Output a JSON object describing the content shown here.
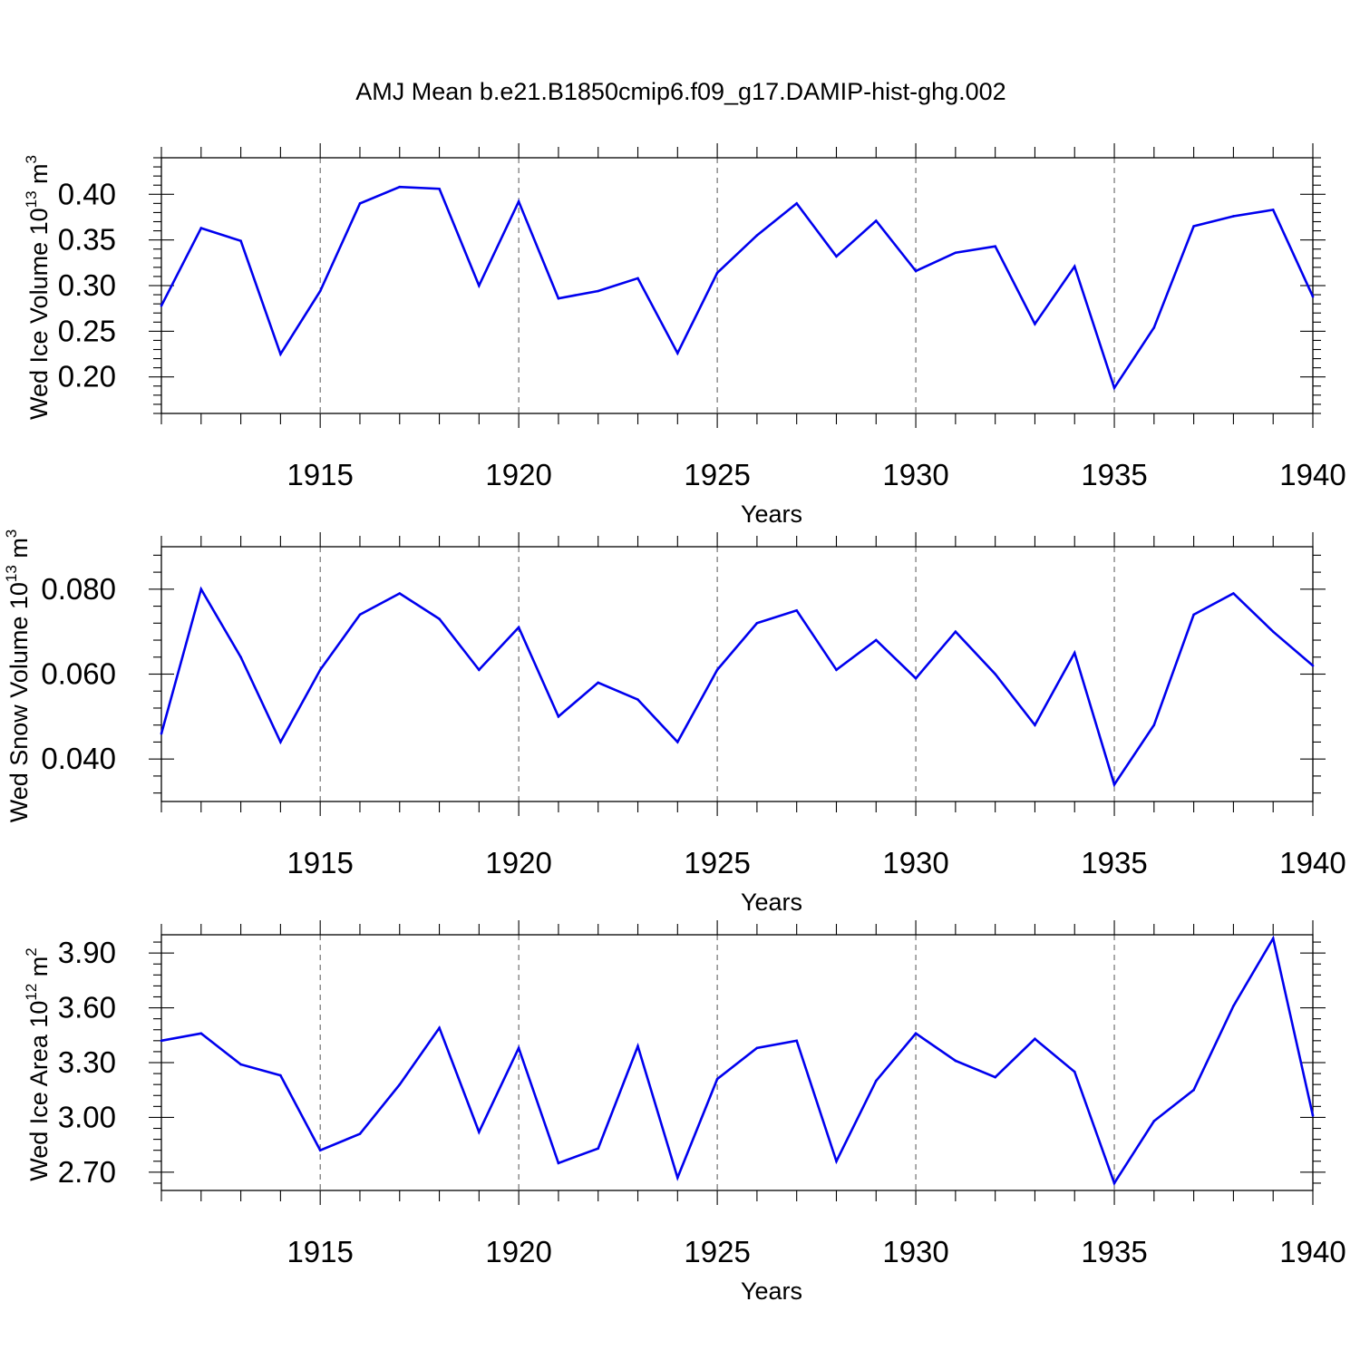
{
  "colors": {
    "series": "#0000ee",
    "frame": "#000000",
    "grid": "#555555",
    "background": "#ffffff"
  },
  "figure_title": "AMJ Mean b.e21.B1850cmip6.f09_g17.DAMIP-hist-ghg.002",
  "chart_data": [
    {
      "type": "line",
      "title": "AMJ Mean b.e21.B1850cmip6.f09_g17.DAMIP-hist-ghg.002",
      "xlabel": "Years",
      "ylabel": {
        "text": "Wed Ice Volume 10",
        "exponent": "13",
        "unit": " m",
        "unit_exponent": "3"
      },
      "xlim": [
        1911,
        1940
      ],
      "ylim": [
        0.16,
        0.44
      ],
      "x_ticks": [
        1915,
        1920,
        1925,
        1930,
        1935,
        1940
      ],
      "x_tick_labels": [
        "1915",
        "1920",
        "1925",
        "1930",
        "1935",
        "1940"
      ],
      "y_ticks": [
        0.2,
        0.25,
        0.3,
        0.35,
        0.4
      ],
      "y_tick_labels": [
        "0.20",
        "0.25",
        "0.30",
        "0.35",
        "0.40"
      ],
      "grid": "vertical dashed at major x ticks",
      "series": [
        {
          "name": "Wed Ice Volume",
          "x": [
            1911,
            1912,
            1913,
            1914,
            1915,
            1916,
            1917,
            1918,
            1919,
            1920,
            1921,
            1922,
            1923,
            1924,
            1925,
            1926,
            1927,
            1928,
            1929,
            1930,
            1931,
            1932,
            1933,
            1934,
            1935,
            1936,
            1937,
            1938,
            1939,
            1940
          ],
          "values": [
            0.278,
            0.363,
            0.349,
            0.225,
            0.294,
            0.39,
            0.408,
            0.406,
            0.3,
            0.392,
            0.286,
            0.294,
            0.308,
            0.226,
            0.314,
            0.355,
            0.39,
            0.332,
            0.371,
            0.316,
            0.336,
            0.343,
            0.258,
            0.321,
            0.188,
            0.254,
            0.365,
            0.376,
            0.383,
            0.288
          ]
        }
      ]
    },
    {
      "type": "line",
      "title": "",
      "xlabel": "Years",
      "ylabel": {
        "text": "Wed Snow Volume 10",
        "exponent": "13",
        "unit": " m",
        "unit_exponent": "3"
      },
      "xlim": [
        1911,
        1940
      ],
      "ylim": [
        0.03,
        0.09
      ],
      "x_ticks": [
        1915,
        1920,
        1925,
        1930,
        1935,
        1940
      ],
      "x_tick_labels": [
        "1915",
        "1920",
        "1925",
        "1930",
        "1935",
        "1940"
      ],
      "y_ticks": [
        0.04,
        0.06,
        0.08
      ],
      "y_tick_labels": [
        "0.040",
        "0.060",
        "0.080"
      ],
      "grid": "vertical dashed at major x ticks",
      "series": [
        {
          "name": "Wed Snow Volume",
          "x": [
            1911,
            1912,
            1913,
            1914,
            1915,
            1916,
            1917,
            1918,
            1919,
            1920,
            1921,
            1922,
            1923,
            1924,
            1925,
            1926,
            1927,
            1928,
            1929,
            1930,
            1931,
            1932,
            1933,
            1934,
            1935,
            1936,
            1937,
            1938,
            1939,
            1940
          ],
          "values": [
            0.046,
            0.08,
            0.064,
            0.044,
            0.061,
            0.074,
            0.079,
            0.073,
            0.061,
            0.071,
            0.05,
            0.058,
            0.054,
            0.044,
            0.061,
            0.072,
            0.075,
            0.061,
            0.068,
            0.059,
            0.07,
            0.06,
            0.048,
            0.065,
            0.034,
            0.048,
            0.074,
            0.079,
            0.07,
            0.062
          ]
        }
      ]
    },
    {
      "type": "line",
      "title": "",
      "xlabel": "Years",
      "ylabel": {
        "text": "Wed Ice Area 10",
        "exponent": "12",
        "unit": " m",
        "unit_exponent": "2"
      },
      "xlim": [
        1911,
        1940
      ],
      "ylim": [
        2.6,
        4.0
      ],
      "x_ticks": [
        1915,
        1920,
        1925,
        1930,
        1935,
        1940
      ],
      "x_tick_labels": [
        "1915",
        "1920",
        "1925",
        "1930",
        "1935",
        "1940"
      ],
      "y_ticks": [
        2.7,
        3.0,
        3.3,
        3.6,
        3.9
      ],
      "y_tick_labels": [
        "2.70",
        "3.00",
        "3.30",
        "3.60",
        "3.90"
      ],
      "grid": "vertical dashed at major x ticks",
      "series": [
        {
          "name": "Wed Ice Area",
          "x": [
            1911,
            1912,
            1913,
            1914,
            1915,
            1916,
            1917,
            1918,
            1919,
            1920,
            1921,
            1922,
            1923,
            1924,
            1925,
            1926,
            1927,
            1928,
            1929,
            1930,
            1931,
            1932,
            1933,
            1934,
            1935,
            1936,
            1937,
            1938,
            1939,
            1940
          ],
          "values": [
            3.42,
            3.46,
            3.29,
            3.23,
            2.82,
            2.91,
            3.18,
            3.49,
            2.92,
            3.38,
            2.75,
            2.83,
            3.39,
            2.67,
            3.21,
            3.38,
            3.42,
            2.76,
            3.2,
            3.46,
            3.31,
            3.22,
            3.43,
            3.25,
            2.64,
            2.98,
            3.15,
            3.61,
            3.98,
            3.01
          ]
        }
      ]
    }
  ]
}
